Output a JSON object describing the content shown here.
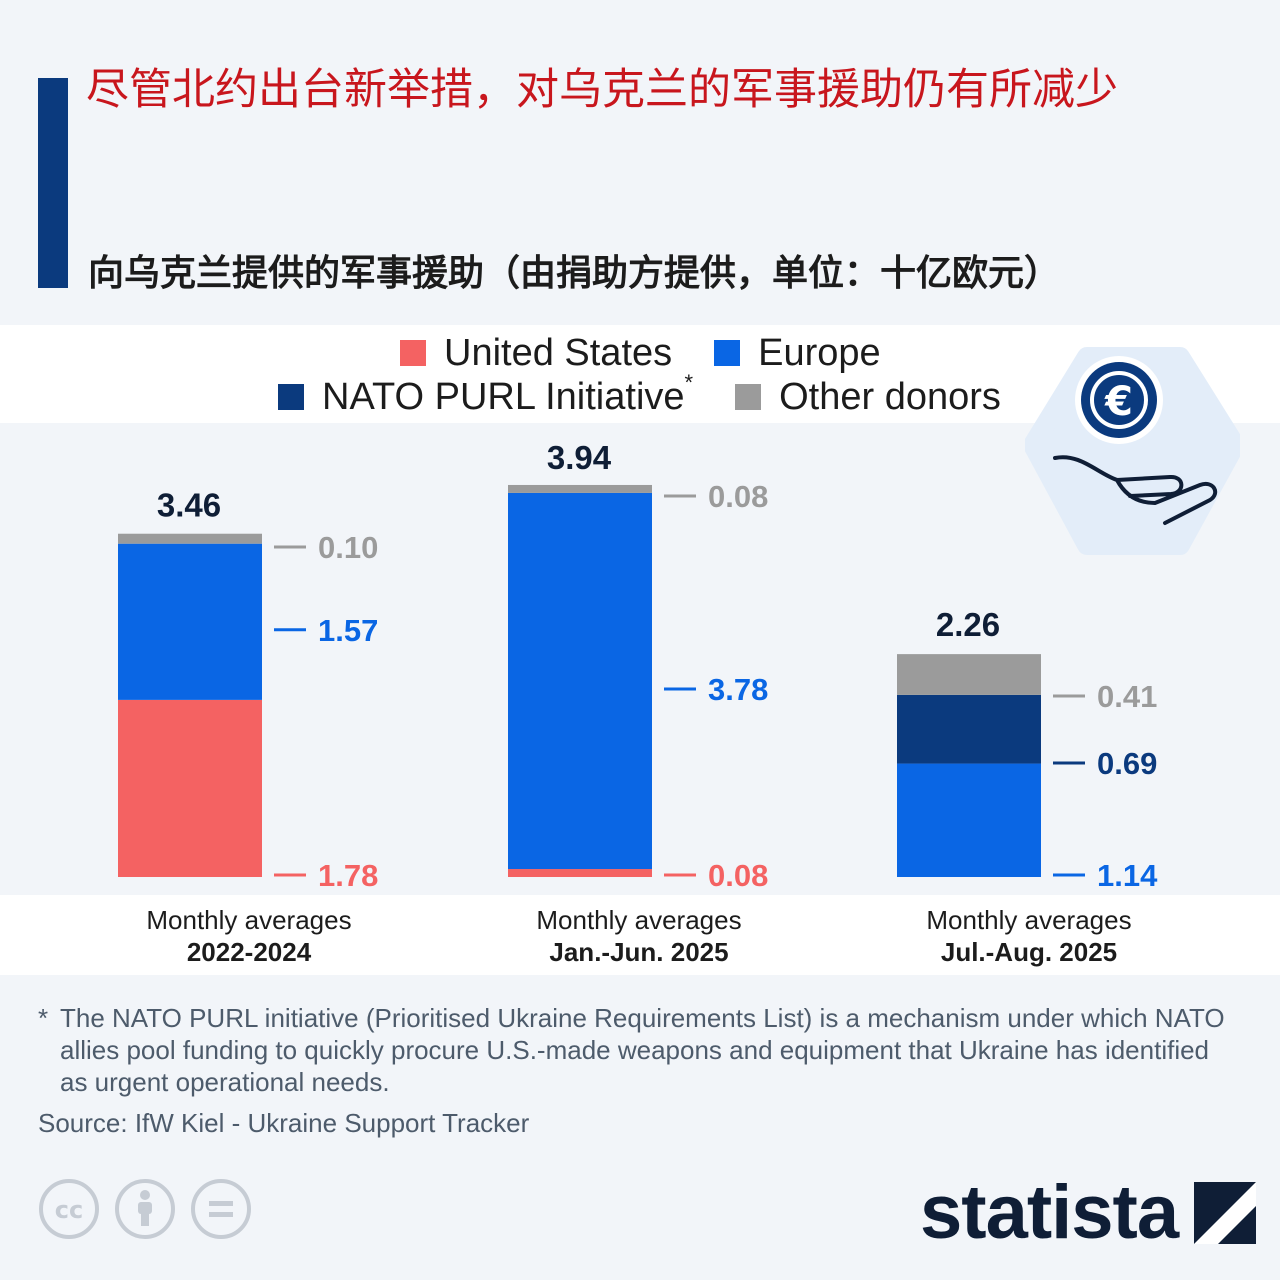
{
  "title": "尽管北约出台新举措，对乌克兰的军事援助仍有所减少",
  "subtitle": "向乌克兰提供的军事援助（由捐助方提供，单位：十亿欧元）",
  "colors": {
    "title": "#c8161d",
    "accent_bar": "#0b3a7e",
    "united_states": "#f46262",
    "europe": "#0a66e4",
    "nato_purl": "#0b3a7e",
    "other_donors": "#9b9b9b",
    "total_label": "#0f1e36"
  },
  "legend": [
    {
      "label": "United States",
      "color": "#f46262"
    },
    {
      "label": "Europe",
      "color": "#0a66e4"
    },
    {
      "label": "NATO PURL Initiative",
      "marker": "*",
      "color": "#0b3a7e"
    },
    {
      "label": "Other donors",
      "color": "#9b9b9b"
    }
  ],
  "icons": {
    "main": "euro-coin-hand-icon",
    "license": [
      "cc-icon",
      "attribution-icon",
      "no-derivatives-icon"
    ],
    "logo": "statista-logo-mark"
  },
  "chart_data": {
    "type": "bar",
    "stacked": true,
    "ylabel": "",
    "ylim": [
      0,
      3.94
    ],
    "categories": [
      {
        "line1": "Monthly averages",
        "line2": "2022-2024"
      },
      {
        "line1": "Monthly averages",
        "line2": "Jan.-Jun. 2025"
      },
      {
        "line1": "Monthly averages",
        "line2": "Jul.-Aug. 2025"
      }
    ],
    "series": [
      {
        "name": "United States",
        "color": "#f46262",
        "values": [
          1.78,
          0.08,
          0
        ]
      },
      {
        "name": "Europe",
        "color": "#0a66e4",
        "values": [
          1.57,
          3.78,
          1.14
        ]
      },
      {
        "name": "NATO PURL Initiative",
        "color": "#0b3a7e",
        "values": [
          0,
          0,
          0.69
        ]
      },
      {
        "name": "Other donors",
        "color": "#9b9b9b",
        "values": [
          0.1,
          0.08,
          0.41
        ]
      }
    ],
    "totals": [
      3.46,
      3.94,
      2.26
    ],
    "value_labels": [
      [
        {
          "series": "Other donors",
          "text": "0.10"
        },
        {
          "series": "Europe",
          "text": "1.57"
        },
        {
          "series": "United States",
          "text": "1.78"
        }
      ],
      [
        {
          "series": "Other donors",
          "text": "0.08"
        },
        {
          "series": "Europe",
          "text": "3.78"
        },
        {
          "series": "United States",
          "text": "0.08"
        }
      ],
      [
        {
          "series": "Other donors",
          "text": "0.41"
        },
        {
          "series": "NATO PURL Initiative",
          "text": "0.69"
        },
        {
          "series": "Europe",
          "text": "1.14"
        }
      ]
    ],
    "legend_position": "top",
    "grid": false
  },
  "footnote": {
    "marker": "*",
    "text": "The NATO PURL initiative (Prioritised Ukraine Requirements List) is a mechanism under which NATO allies pool funding to quickly procure U.S.-made weapons and equipment that Ukraine has identified as urgent operational needs."
  },
  "source": "Source: IfW Kiel - Ukraine Support Tracker",
  "brand": "statista"
}
